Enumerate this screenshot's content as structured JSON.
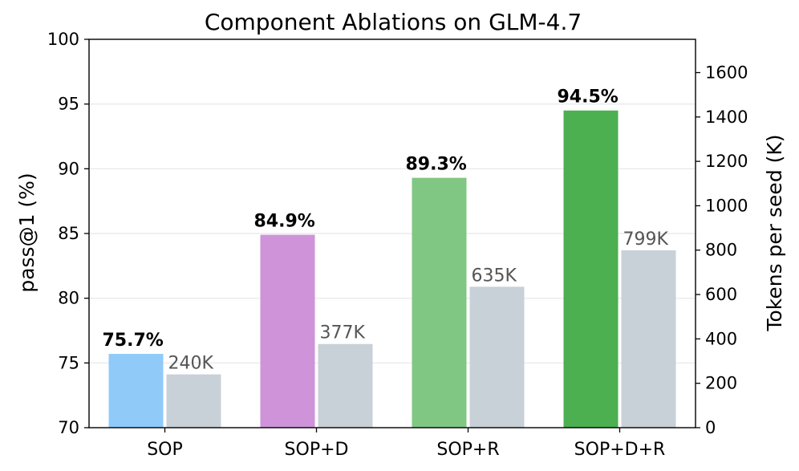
{
  "chart_data": {
    "type": "bar",
    "title": "Component Ablations on GLM-4.7",
    "categories": [
      "SOP",
      "SOP+D",
      "SOP+R",
      "SOP+D+R"
    ],
    "series": [
      {
        "name": "pass@1",
        "axis": "left",
        "values": [
          75.7,
          84.9,
          89.3,
          94.5
        ],
        "value_labels": [
          "75.7%",
          "84.9%",
          "89.3%",
          "94.5%"
        ],
        "colors": [
          "#90CAF9",
          "#CE93D8",
          "#81C784",
          "#4CAF50"
        ]
      },
      {
        "name": "Tokens per seed",
        "axis": "right",
        "values": [
          240,
          377,
          635,
          799
        ],
        "value_labels": [
          "240K",
          "377K",
          "635K",
          "799K"
        ],
        "color": "#C8D0D8"
      }
    ],
    "ylabel": "pass@1 (%)",
    "ylim": [
      70,
      100
    ],
    "yticks": [
      70,
      75,
      80,
      85,
      90,
      95,
      100
    ],
    "y2label": "Tokens per seed (K)",
    "y2lim": [
      0,
      1750
    ],
    "y2ticks": [
      0,
      200,
      400,
      600,
      800,
      1000,
      1200,
      1400,
      1600
    ],
    "grid": true
  }
}
